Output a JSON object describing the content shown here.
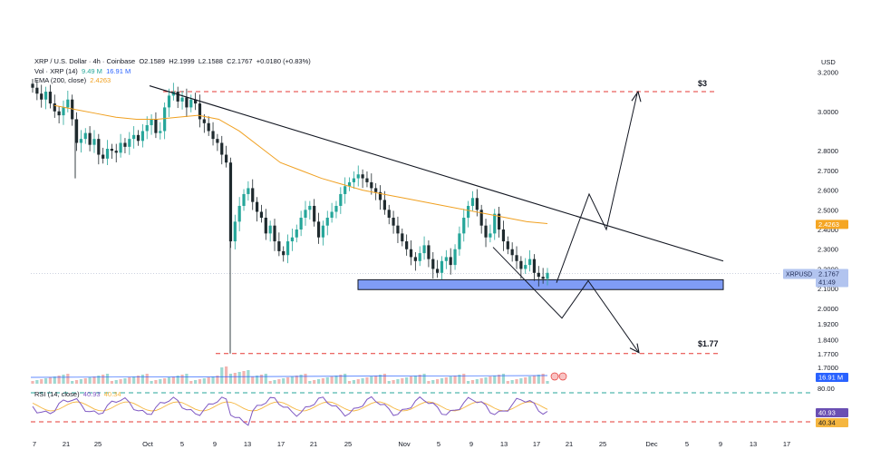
{
  "legend": {
    "symbol_line": "XRP / U.S. Dollar · 4h · Coinbase",
    "o_label": "O",
    "o_value": "2.1589",
    "h_label": "H",
    "h_value": "2.1999",
    "l_label": "L",
    "l_value": "2.1588",
    "c_label": "C",
    "c_value": "2.1767",
    "change": "+0.0180 (+0.83%)",
    "vol_label": "Vol · XRP (14)",
    "vol_value1": "9.49 M",
    "vol_value2": "16.91 M",
    "ema_label": "EMA (200, close)",
    "ema_value": "2.4263"
  },
  "currency": "USD",
  "rsi_legend": {
    "label": "RSI (14, close)",
    "value1": "40.93",
    "value2": "40.34"
  },
  "colors": {
    "up": "#26a69a",
    "down": "#1f2a2e",
    "ema": "#f0a020",
    "red_line": "#e53935",
    "green_line": "#26a69a",
    "blue_zone": "#7f9cf5",
    "rsi": "#7e57c2",
    "rsi_ma": "#f5b640",
    "ema_badge": "#f5a623",
    "price_badge": "#b2c4ef",
    "vol_badge": "#2962ff",
    "rsi_badge": "#6a4fb3"
  },
  "chart_data": {
    "type": "candlestick",
    "ylim": [
      1.7,
      3.22
    ],
    "y_ticks": [
      "3.2000",
      "3.0000",
      "2.8000",
      "2.7000",
      "2.6000",
      "2.5000",
      "2.4000",
      "2.3000",
      "2.2000",
      "2.1000",
      "2.0000",
      "1.9200",
      "1.8400",
      "1.7700",
      "1.7000"
    ],
    "x_ticks": [
      "7",
      "21",
      "25",
      "Oct",
      "5",
      "9",
      "13",
      "17",
      "21",
      "25",
      "Nov",
      "5",
      "9",
      "13",
      "17",
      "21",
      "25",
      "Dec",
      "5",
      "9",
      "13",
      "17"
    ],
    "price_levels": [
      {
        "label": "$3",
        "value": 3.1
      }
    ],
    "support_levels": [
      {
        "label": "$1.77",
        "value": 1.77
      }
    ],
    "support_zone": {
      "low": 2.095,
      "high": 2.145
    },
    "trendline": {
      "from": 3.13,
      "to": 2.24
    },
    "scenario_up_target": 3.1,
    "scenario_down_target": 1.77,
    "last_price": {
      "symbol": "XRPUSD",
      "value": "2.1767",
      "countdown": "41:49"
    },
    "ema_badge": "2.4263",
    "vol_badge": "16.91 M",
    "rsi": {
      "upper": 80.0,
      "lower": 40.34,
      "upper_label": "80.00",
      "badge1": "40.93",
      "badge2": "40.34"
    },
    "candles_close": [
      3.12,
      3.09,
      3.06,
      3.1,
      3.04,
      3.0,
      2.98,
      3.02,
      3.06,
      2.96,
      2.84,
      2.86,
      2.89,
      2.83,
      2.86,
      2.78,
      2.76,
      2.81,
      2.8,
      2.79,
      2.84,
      2.82,
      2.86,
      2.88,
      2.85,
      2.9,
      2.93,
      2.96,
      2.89,
      2.9,
      3.02,
      3.08,
      3.1,
      3.05,
      3.07,
      3.02,
      3.06,
      3.04,
      2.96,
      2.94,
      2.9,
      2.86,
      2.84,
      2.78,
      2.74,
      2.34,
      2.44,
      2.52,
      2.58,
      2.61,
      2.54,
      2.49,
      2.46,
      2.38,
      2.42,
      2.34,
      2.29,
      2.27,
      2.34,
      2.36,
      2.4,
      2.46,
      2.5,
      2.52,
      2.44,
      2.36,
      2.42,
      2.46,
      2.49,
      2.52,
      2.58,
      2.62,
      2.64,
      2.66,
      2.68,
      2.66,
      2.64,
      2.61,
      2.59,
      2.55,
      2.5,
      2.46,
      2.42,
      2.38,
      2.34,
      2.3,
      2.26,
      2.24,
      2.28,
      2.32,
      2.25,
      2.2,
      2.18,
      2.24,
      2.26,
      2.22,
      2.3,
      2.38,
      2.46,
      2.52,
      2.56,
      2.5,
      2.42,
      2.36,
      2.38,
      2.48,
      2.4,
      2.34,
      2.3,
      2.27,
      2.24,
      2.2,
      2.22,
      2.25,
      2.18,
      2.16,
      2.15,
      2.18
    ]
  }
}
